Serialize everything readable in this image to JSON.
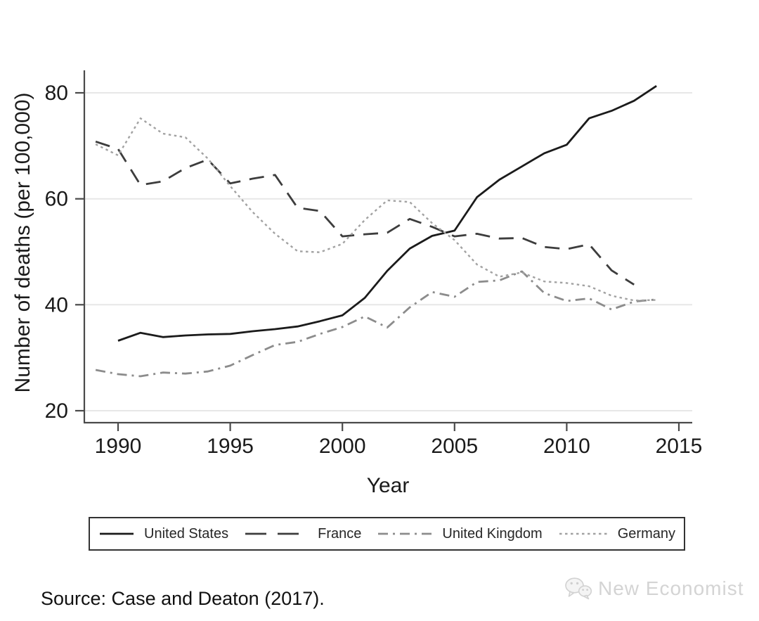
{
  "figure": {
    "source_text": "Source: Case and Deaton (2017).",
    "watermark_text": "New Economist"
  },
  "chart_data": {
    "type": "line",
    "title": "",
    "xlabel": "Year",
    "ylabel": "Number of deaths (per 100,000)",
    "x_ticks": [
      "1990",
      "1995",
      "2000",
      "2005",
      "2010",
      "2015"
    ],
    "y_ticks": [
      "80",
      "60",
      "40",
      "20"
    ],
    "xlim": [
      1988.5,
      2015.6
    ],
    "ylim": [
      18,
      83
    ],
    "grid": "horizontal",
    "legend_position": "bottom-box",
    "axis_color": "#4a4a4a",
    "gridline_color": "#e7e7e7",
    "series": [
      {
        "key": "us",
        "name": "United States",
        "style": "solid",
        "color": "#1b1b1b",
        "years": [
          1990,
          1991,
          1992,
          1993,
          1994,
          1995,
          1996,
          1997,
          1998,
          1999,
          2000,
          2001,
          2002,
          2003,
          2004,
          2005,
          2006,
          2007,
          2008,
          2009,
          2010,
          2011,
          2012,
          2013,
          2014
        ],
        "values": [
          33.2,
          34.7,
          33.9,
          34.2,
          34.4,
          34.5,
          35.0,
          35.4,
          35.9,
          36.9,
          38.0,
          41.3,
          46.4,
          50.6,
          53.0,
          54.0,
          60.3,
          63.6,
          66.1,
          68.6,
          70.2,
          75.2,
          76.6,
          78.5,
          81.3
        ]
      },
      {
        "key": "france",
        "name": "France",
        "style": "long-dash",
        "color": "#3d3d3d",
        "years": [
          1989,
          1990,
          1991,
          1992,
          1993,
          1994,
          1995,
          1996,
          1997,
          1998,
          1999,
          2000,
          2001,
          2002,
          2003,
          2004,
          2005,
          2006,
          2007,
          2008,
          2009,
          2010,
          2011,
          2012,
          2013
        ],
        "values": [
          70.8,
          69.4,
          62.6,
          63.3,
          65.8,
          67.4,
          62.9,
          63.8,
          64.5,
          58.3,
          57.7,
          52.9,
          53.3,
          53.6,
          56.2,
          54.7,
          52.9,
          53.4,
          52.5,
          52.6,
          50.9,
          50.5,
          51.4,
          46.5,
          43.8
        ]
      },
      {
        "key": "uk",
        "name": "United Kingdom",
        "style": "dash-dot",
        "color": "#8c8c8c",
        "years": [
          1989,
          1990,
          1991,
          1992,
          1993,
          1994,
          1995,
          1996,
          1997,
          1998,
          1999,
          2000,
          2001,
          2002,
          2003,
          2004,
          2005,
          2006,
          2007,
          2008,
          2009,
          2010,
          2011,
          2012,
          2013,
          2014
        ],
        "values": [
          27.7,
          26.9,
          26.5,
          27.2,
          27.0,
          27.4,
          28.5,
          30.5,
          32.4,
          33.0,
          34.5,
          35.8,
          37.8,
          35.7,
          39.5,
          42.4,
          41.5,
          44.3,
          44.6,
          46.3,
          42.2,
          40.7,
          41.2,
          39.1,
          40.6,
          41.0
        ]
      },
      {
        "key": "germany",
        "name": "Germany",
        "style": "dotted",
        "color": "#a2a2a2",
        "years": [
          1989,
          1990,
          1991,
          1992,
          1993,
          1994,
          1995,
          1996,
          1997,
          1998,
          1999,
          2000,
          2001,
          2002,
          2003,
          2004,
          2005,
          2006,
          2007,
          2008,
          2009,
          2010,
          2011,
          2012,
          2013,
          2014
        ],
        "values": [
          70.3,
          68.2,
          75.2,
          72.3,
          71.6,
          67.6,
          62.4,
          57.5,
          53.4,
          50.1,
          49.9,
          51.5,
          56.0,
          59.7,
          59.4,
          55.4,
          52.2,
          47.6,
          45.3,
          46.1,
          44.4,
          44.1,
          43.5,
          41.7,
          40.8,
          40.9
        ]
      }
    ]
  }
}
